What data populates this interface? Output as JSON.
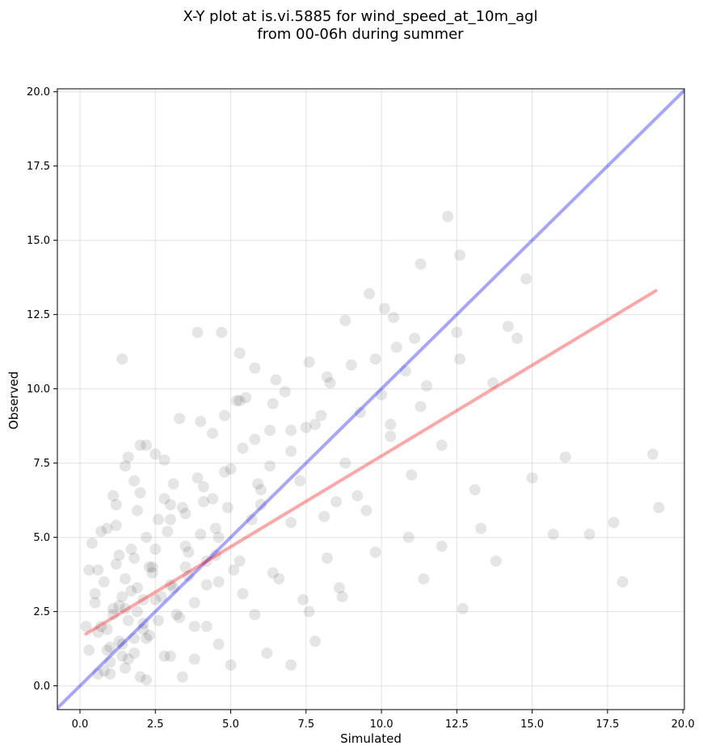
{
  "chart_data": {
    "type": "scatter",
    "title": [
      "X-Y plot at is.vi.5885 for wind_speed_at_10m_agl",
      "from 00-06h during summer"
    ],
    "xlabel": "Simulated",
    "ylabel": "Observed",
    "xlim": [
      -0.75,
      20.05
    ],
    "ylim": [
      -0.8,
      20.1
    ],
    "xticks": [
      0.0,
      2.5,
      5.0,
      7.5,
      10.0,
      12.5,
      15.0,
      17.5,
      20.0
    ],
    "yticks": [
      0.0,
      2.5,
      5.0,
      7.5,
      10.0,
      12.5,
      15.0,
      17.5,
      20.0
    ],
    "grid": true,
    "colors": {
      "points": "#000000",
      "identity_line": "#0000ff",
      "fit_line": "#ff0000",
      "grid": "#b0b0b0"
    },
    "identity_line": {
      "x": [
        -0.75,
        20.05
      ],
      "y": [
        -0.75,
        20.05
      ]
    },
    "fit_line": {
      "x": [
        0.2,
        19.1
      ],
      "y": [
        1.75,
        13.3
      ]
    },
    "points": {
      "x": [
        0.3,
        0.5,
        0.6,
        0.8,
        0.9,
        1.0,
        1.1,
        1.2,
        1.3,
        1.4,
        1.5,
        1.6,
        1.7,
        1.8,
        1.9,
        2.0,
        2.1,
        2.2,
        2.3,
        2.4,
        0.4,
        0.7,
        0.9,
        1.0,
        1.2,
        1.3,
        1.5,
        1.6,
        1.8,
        1.9,
        2.0,
        2.2,
        2.3,
        2.5,
        2.6,
        2.8,
        3.0,
        3.1,
        3.3,
        3.5,
        0.5,
        0.6,
        0.8,
        1.1,
        1.3,
        1.4,
        1.7,
        1.9,
        2.1,
        2.4,
        2.7,
        2.9,
        3.2,
        3.4,
        3.6,
        3.8,
        4.0,
        4.2,
        4.4,
        4.6,
        0.2,
        0.6,
        0.9,
        1.2,
        1.5,
        1.8,
        2.1,
        2.5,
        2.8,
        3.1,
        3.5,
        3.8,
        4.1,
        4.5,
        4.8,
        5.1,
        5.4,
        5.7,
        6.0,
        6.3,
        1.0,
        1.4,
        1.8,
        2.2,
        2.6,
        3.0,
        3.4,
        3.8,
        4.2,
        4.6,
        5.0,
        5.4,
        5.8,
        6.2,
        6.6,
        7.0,
        7.4,
        7.8,
        8.2,
        8.6,
        1.6,
        2.2,
        2.8,
        3.3,
        3.9,
        4.4,
        4.9,
        5.3,
        5.8,
        6.3,
        6.8,
        7.3,
        7.8,
        8.3,
        8.8,
        9.3,
        9.8,
        10.3,
        10.8,
        11.3,
        3.0,
        3.5,
        4.0,
        4.5,
        5.0,
        5.5,
        6.0,
        6.5,
        7.0,
        7.5,
        8.0,
        8.5,
        9.0,
        9.5,
        10.0,
        10.5,
        11.0,
        11.5,
        12.0,
        12.5,
        4.2,
        4.8,
        5.3,
        5.9,
        6.4,
        7.0,
        7.6,
        8.1,
        8.7,
        9.2,
        9.8,
        10.3,
        10.9,
        11.4,
        12.0,
        12.6,
        13.1,
        13.7,
        14.2,
        14.8,
        1.4,
        3.9,
        4.7,
        5.3,
        10.1,
        11.3,
        12.2,
        12.6,
        14.5,
        15.0,
        15.7,
        16.1,
        16.9,
        17.7,
        18.0,
        19.0,
        19.2,
        13.3,
        13.8,
        12.7,
        0.3,
        0.7,
        1.1,
        1.5,
        2.0,
        2.5,
        3.0,
        3.6,
        4.1,
        4.6,
        5.2,
        5.8,
        6.4,
        7.0,
        7.6,
        8.2,
        8.8,
        9.6,
        10.4,
        11.1
      ],
      "y": [
        1.2,
        2.8,
        0.4,
        3.5,
        1.9,
        0.8,
        2.4,
        4.1,
        1.5,
        3.0,
        0.6,
        2.2,
        4.6,
        1.1,
        3.3,
        0.3,
        2.9,
        5.0,
        1.7,
        3.8,
        4.8,
        2.0,
        5.3,
        1.3,
        6.1,
        2.7,
        3.6,
        0.9,
        4.3,
        2.5,
        6.5,
        1.6,
        4.0,
        2.9,
        5.6,
        1.0,
        3.4,
        6.8,
        2.3,
        4.7,
        3.1,
        1.8,
        0.5,
        2.6,
        4.4,
        1.4,
        3.2,
        5.9,
        2.1,
        4.0,
        3.0,
        5.2,
        2.4,
        6.0,
        3.7,
        2.0,
        5.1,
        4.2,
        6.3,
        3.5,
        2.0,
        3.9,
        1.2,
        5.4,
        2.6,
        6.9,
        1.9,
        4.6,
        7.6,
        3.3,
        5.8,
        2.8,
        6.7,
        4.4,
        7.2,
        3.9,
        8.0,
        5.6,
        6.1,
        8.6,
        0.4,
        1.0,
        1.6,
        0.2,
        2.2,
        1.0,
        0.3,
        0.9,
        2.0,
        1.4,
        0.7,
        3.1,
        2.4,
        1.1,
        3.6,
        0.7,
        2.9,
        1.5,
        4.3,
        3.3,
        7.7,
        8.1,
        6.3,
        9.0,
        7.0,
        8.5,
        6.0,
        9.6,
        8.3,
        7.4,
        9.9,
        6.9,
        8.8,
        10.2,
        7.5,
        9.2,
        11.0,
        8.4,
        10.6,
        9.4,
        6.1,
        4.0,
        8.9,
        5.3,
        7.3,
        9.7,
        6.6,
        10.3,
        5.5,
        8.7,
        9.1,
        6.2,
        10.8,
        5.9,
        9.8,
        11.4,
        7.1,
        10.1,
        8.1,
        11.9,
        3.4,
        9.1,
        4.2,
        6.8,
        3.8,
        7.9,
        2.5,
        5.7,
        3.0,
        6.4,
        4.5,
        8.8,
        5.0,
        3.6,
        4.7,
        11.0,
        6.6,
        10.2,
        12.1,
        13.7,
        11.0,
        11.9,
        11.9,
        11.2,
        12.7,
        14.2,
        15.8,
        14.5,
        11.7,
        7.0,
        5.1,
        7.7,
        5.1,
        5.5,
        3.5,
        7.8,
        6.0,
        5.3,
        4.2,
        2.6,
        3.9,
        5.2,
        6.4,
        7.4,
        8.1,
        7.8,
        5.6,
        4.5,
        6.2,
        5.0,
        9.6,
        10.7,
        9.5,
        8.6,
        10.9,
        10.4,
        12.3,
        13.2,
        12.4,
        11.7
      ]
    }
  }
}
